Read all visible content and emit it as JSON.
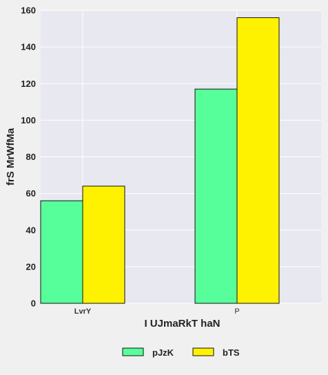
{
  "chart_data": {
    "type": "bar",
    "categories": [
      "LvrY",
      "P"
    ],
    "series": [
      {
        "name": "pJzK",
        "values": [
          56,
          117
        ],
        "color": "#57ff9b"
      },
      {
        "name": "bTS",
        "values": [
          64,
          156
        ],
        "color": "#fff200"
      }
    ],
    "xlabel": "I UJmaRkT haN",
    "ylabel": "frS MrWfMa",
    "ylim": [
      0,
      160
    ],
    "yticks": [
      0,
      20,
      40,
      60,
      80,
      100,
      120,
      140,
      160
    ],
    "grid": true,
    "legend_position": "bottom-center",
    "plot_background": "#e8e8f0",
    "grid_color": "#ffffff"
  }
}
